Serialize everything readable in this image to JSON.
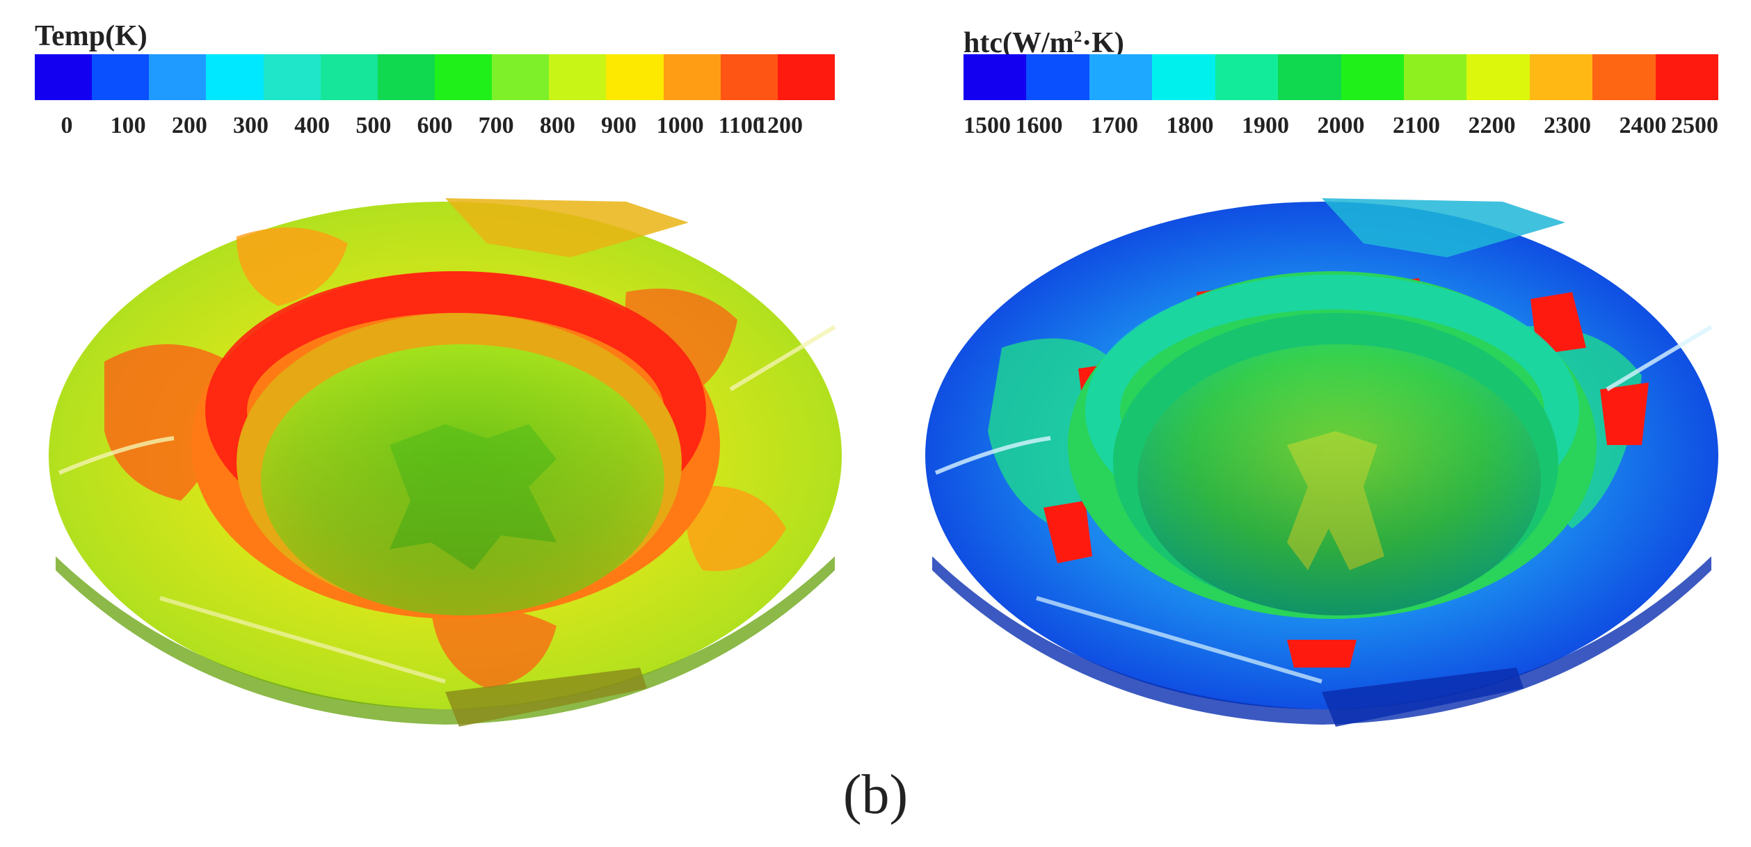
{
  "legends": {
    "temp": {
      "title": "Temp(K)",
      "colors": [
        "#1400f0",
        "#0a50ff",
        "#1f9aff",
        "#00e8ff",
        "#1fe6c8",
        "#15e69a",
        "#10d94f",
        "#1ff01a",
        "#7ef02a",
        "#c8f516",
        "#fde900",
        "#ff9e14",
        "#ff5514",
        "#ff1a10"
      ],
      "ticks": [
        "0",
        "100",
        "200",
        "300",
        "400",
        "500",
        "600",
        "700",
        "800",
        "900",
        "1000",
        "1100",
        "1200"
      ]
    },
    "htc": {
      "title_prefix": "htc(W/m",
      "title_sup": "2",
      "title_suffix": "·K)",
      "colors": [
        "#1400f0",
        "#0a50ff",
        "#1fa8ff",
        "#00f0ee",
        "#12ec9a",
        "#10d94f",
        "#1ff01a",
        "#8ef01e",
        "#dcf70c",
        "#ffb814",
        "#ff6614",
        "#ff1a10"
      ],
      "ticks": [
        "1500",
        "1600",
        "1700",
        "1800",
        "1900",
        "2000",
        "2100",
        "2200",
        "2300",
        "2400",
        "2500"
      ]
    }
  },
  "caption": "(b)"
}
